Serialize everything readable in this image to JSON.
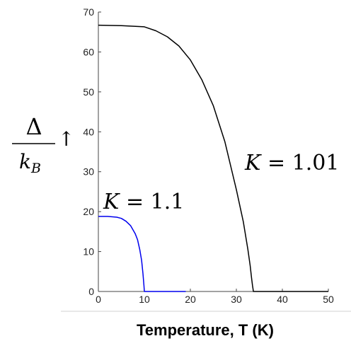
{
  "chart_data": {
    "type": "line",
    "title": "",
    "xlabel": "Temperature, T (K)",
    "ylabel": {
      "numerator": "Δ",
      "denominator_base": "k",
      "denominator_sub": "B",
      "arrow": "↑"
    },
    "xlim": [
      0,
      50
    ],
    "ylim": [
      0,
      70
    ],
    "xticks": [
      0,
      10,
      20,
      30,
      40,
      50
    ],
    "yticks": [
      0,
      10,
      20,
      30,
      40,
      50,
      60,
      70
    ],
    "grid": false,
    "series": [
      {
        "name": "K = 1.01",
        "color": "#000000",
        "x": [
          0,
          5,
          10,
          12.5,
          15,
          17.5,
          20,
          22.5,
          25,
          27.5,
          30,
          31.5,
          32.5,
          33,
          33.3,
          33.5,
          33.7,
          34,
          40,
          50
        ],
        "y": [
          66.7,
          66.6,
          66.3,
          65.3,
          63.8,
          61.5,
          58.0,
          53.0,
          46.5,
          37.5,
          25.5,
          17.5,
          10.5,
          6.5,
          3.5,
          1.5,
          0,
          0,
          0,
          0
        ]
      },
      {
        "name": "K = 1.1",
        "color": "#0000ee",
        "x": [
          0,
          2,
          4,
          5,
          6,
          7,
          8,
          8.5,
          9,
          9.4,
          9.7,
          9.9,
          10,
          15,
          19
        ],
        "y": [
          18.8,
          18.8,
          18.6,
          18.3,
          17.6,
          16.5,
          14.5,
          13.0,
          10.5,
          7.8,
          4.5,
          1.5,
          0,
          0,
          0
        ]
      }
    ],
    "annotations": [
      {
        "base": "K",
        "rest": " = 1.01"
      },
      {
        "base": "K",
        "rest": " = 1.1"
      }
    ]
  }
}
